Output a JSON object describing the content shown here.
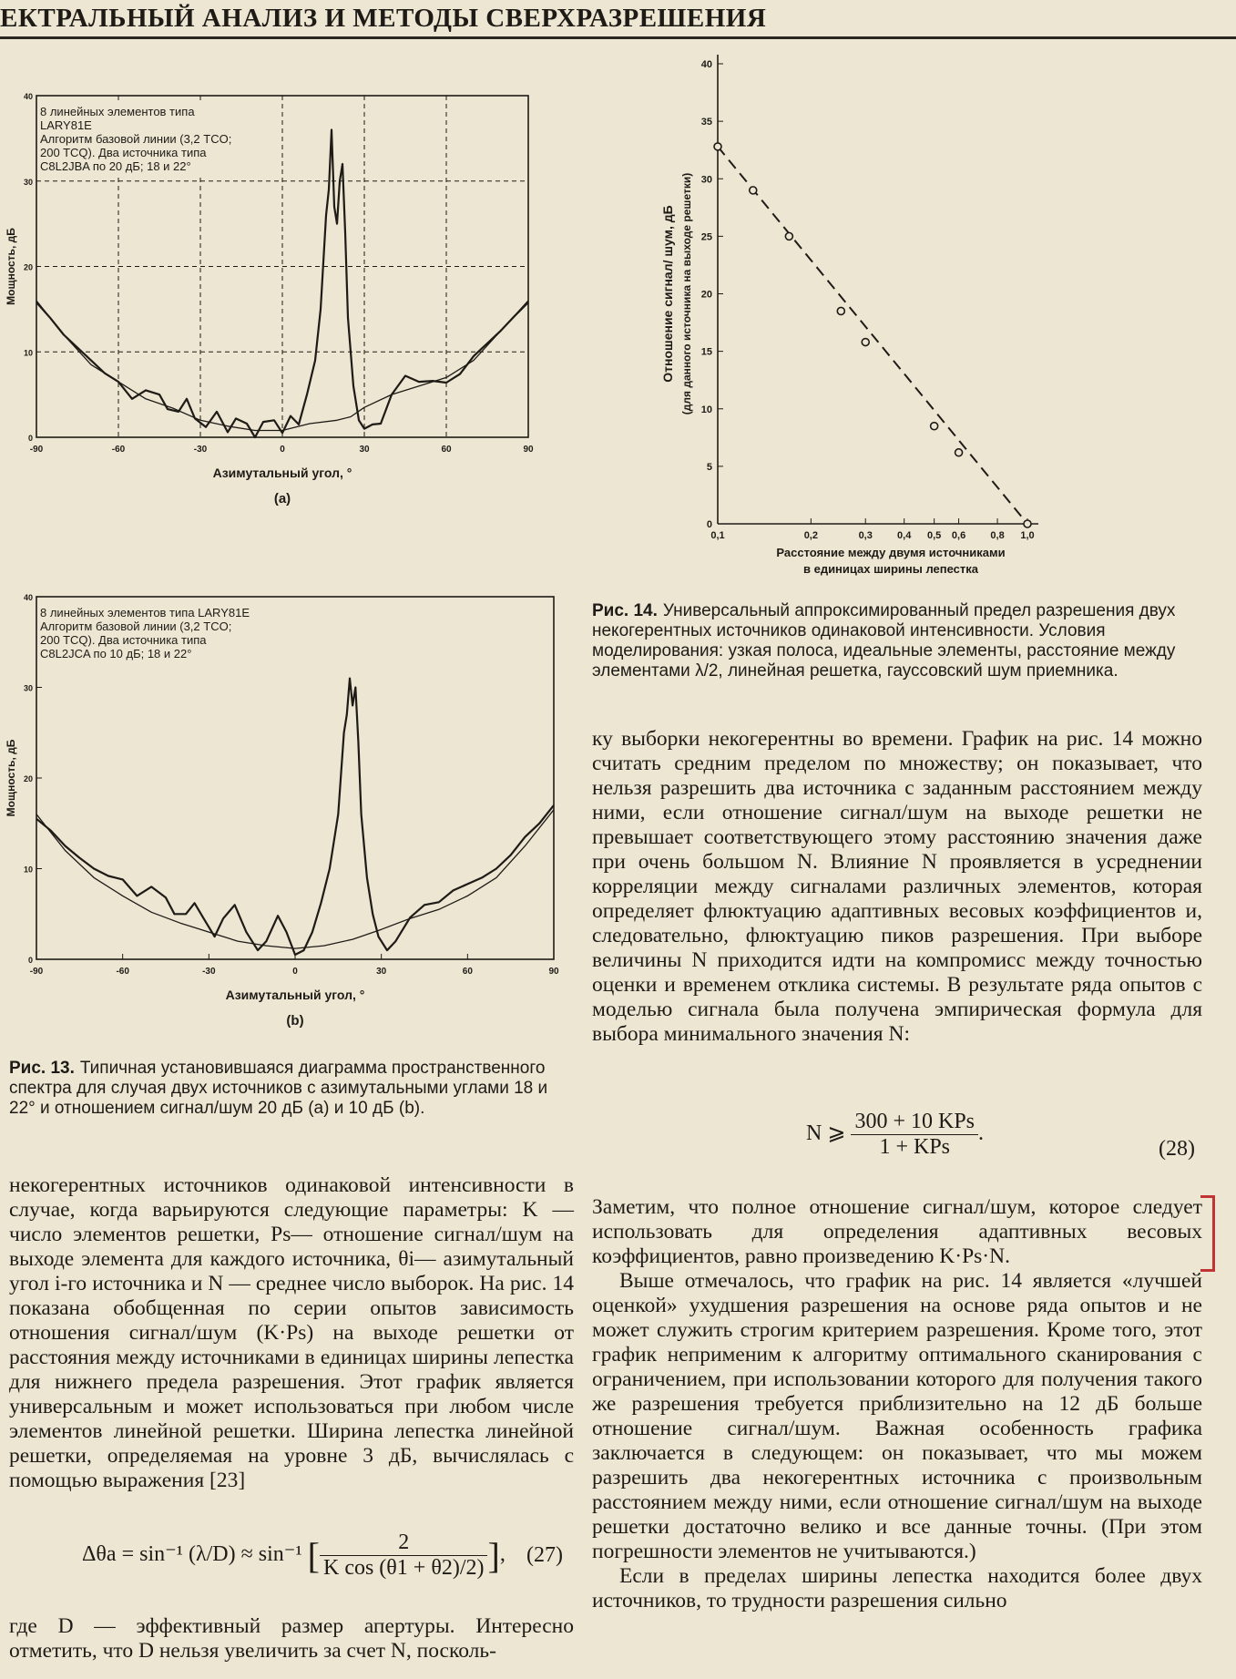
{
  "header": {
    "title": "ЕКТРАЛЬНЫЙ АНАЛИЗ И МЕТОДЫ СВЕРХРАЗРЕШЕНИЯ"
  },
  "chart_data": [
    {
      "id": "a",
      "type": "line",
      "panel_label": "(a)",
      "xlabel": "Азимутальный угол, °",
      "ylabel": "Мощность, дБ",
      "xlim": [
        -90,
        90
      ],
      "ylim": [
        0,
        40
      ],
      "xticks": [
        "-90",
        "-60",
        "-30",
        "0",
        "30",
        "60",
        "90"
      ],
      "yticks": [
        "0",
        "10",
        "20",
        "30",
        "40"
      ],
      "grid": true,
      "annotation": [
        "8 линейных элементов типа",
        "LARY81E",
        "Алгоритм базовой линии (3,2 TCO;",
        "200 TCQ). Два источника типа",
        "C8L2JBA по 20 дБ; 18 и 22°"
      ],
      "series": [
        {
          "values": [
            [
              -90,
              16
            ],
            [
              -80,
              12
            ],
            [
              -70,
              8.5
            ],
            [
              -60,
              6.5
            ],
            [
              -50,
              4.5
            ],
            [
              -40,
              3.4
            ],
            [
              -30,
              2
            ],
            [
              -20,
              1.3
            ],
            [
              -10,
              0.8
            ],
            [
              0,
              0.8
            ],
            [
              10,
              1.6
            ],
            [
              20,
              2
            ],
            [
              25,
              2.4
            ],
            [
              30,
              3.5
            ],
            [
              40,
              5
            ],
            [
              50,
              6
            ],
            [
              60,
              7
            ],
            [
              70,
              9
            ],
            [
              80,
              12.5
            ],
            [
              90,
              16
            ]
          ]
        },
        {
          "values": [
            [
              -90,
              15.8
            ],
            [
              -85,
              14
            ],
            [
              -80,
              12
            ],
            [
              -75,
              10.5
            ],
            [
              -70,
              9
            ],
            [
              -65,
              7.5
            ],
            [
              -60,
              6.5
            ],
            [
              -55,
              4.5
            ],
            [
              -50,
              5.5
            ],
            [
              -45,
              5
            ],
            [
              -42,
              3.3
            ],
            [
              -38,
              3
            ],
            [
              -35,
              4.5
            ],
            [
              -32,
              2.2
            ],
            [
              -28,
              1.2
            ],
            [
              -24,
              3
            ],
            [
              -20,
              0.6
            ],
            [
              -17,
              2.2
            ],
            [
              -13,
              1.6
            ],
            [
              -10,
              0
            ],
            [
              -7,
              1.8
            ],
            [
              -3,
              2
            ],
            [
              0,
              0.5
            ],
            [
              3,
              2.5
            ],
            [
              6,
              1.5
            ],
            [
              9,
              5
            ],
            [
              12,
              9
            ],
            [
              14,
              15
            ],
            [
              16,
              26
            ],
            [
              17,
              29
            ],
            [
              18,
              36
            ],
            [
              19,
              27
            ],
            [
              20,
              25
            ],
            [
              21,
              30
            ],
            [
              22,
              32
            ],
            [
              23,
              24
            ],
            [
              24,
              14
            ],
            [
              26,
              6
            ],
            [
              28,
              2
            ],
            [
              30,
              1
            ],
            [
              33,
              1.5
            ],
            [
              36,
              1.6
            ],
            [
              40,
              5
            ],
            [
              45,
              7.2
            ],
            [
              50,
              6.5
            ],
            [
              55,
              6.6
            ],
            [
              60,
              6.4
            ],
            [
              65,
              7.4
            ],
            [
              70,
              9.5
            ],
            [
              75,
              11
            ],
            [
              80,
              12.5
            ],
            [
              85,
              14.2
            ],
            [
              90,
              15.8
            ]
          ]
        }
      ]
    },
    {
      "x_title": "Расстояние между двумя источниками",
      "xlabel": "в единицах ширины лепестка",
      "ylabel": "Отношение сигнал/ шум, дБ",
      "ylabel2": "(для данного источника на выходе решетки)",
      "id": "14",
      "type": "scatter",
      "xscale": "log",
      "xlim": [
        0.1,
        1.0
      ],
      "ylim": [
        0,
        40
      ],
      "xticks": [
        "0,1",
        "0,2",
        "0,3",
        "0,4",
        "0,5",
        "0,6",
        "0,8",
        "1,0"
      ],
      "yticks": [
        "0",
        "5",
        "10",
        "15",
        "20",
        "25",
        "30",
        "35",
        "40"
      ],
      "points": [
        [
          0.1,
          32.8
        ],
        [
          0.13,
          29
        ],
        [
          0.17,
          25
        ],
        [
          0.25,
          18.5
        ],
        [
          0.3,
          15.8
        ],
        [
          0.5,
          8.5
        ],
        [
          0.6,
          6.2
        ],
        [
          1.0,
          0
        ]
      ],
      "fit_line": [
        [
          0.1,
          32.8
        ],
        [
          1.0,
          0
        ]
      ]
    },
    {
      "id": "b",
      "type": "line",
      "panel_label": "(b)",
      "xlabel": "Азимутальный угол, °",
      "ylabel": "Мощность, дБ",
      "xlim": [
        -90,
        90
      ],
      "ylim": [
        0,
        40
      ],
      "xticks": [
        "-90",
        "-60",
        "-30",
        "0",
        "30",
        "60",
        "90"
      ],
      "yticks": [
        "0",
        "10",
        "20",
        "30",
        "40"
      ],
      "grid": false,
      "annotation": [
        "8 линейных элементов типа LARY81E",
        "Алгоритм базовой линии (3,2 TCO;",
        "200 TCQ). Два источника типа",
        "C8L2JCA по 10 дБ; 18 и 22°"
      ],
      "series": [
        {
          "values": [
            [
              -90,
              16
            ],
            [
              -80,
              12
            ],
            [
              -70,
              9
            ],
            [
              -60,
              7
            ],
            [
              -50,
              5.2
            ],
            [
              -40,
              4
            ],
            [
              -30,
              3
            ],
            [
              -20,
              2
            ],
            [
              -10,
              1.5
            ],
            [
              0,
              1.2
            ],
            [
              10,
              1.5
            ],
            [
              20,
              2.2
            ],
            [
              30,
              3.3
            ],
            [
              40,
              4.5
            ],
            [
              50,
              5.5
            ],
            [
              60,
              7
            ],
            [
              70,
              9
            ],
            [
              80,
              12.5
            ],
            [
              90,
              16.5
            ]
          ]
        },
        {
          "values": [
            [
              -90,
              15.5
            ],
            [
              -85,
              14.2
            ],
            [
              -80,
              12.5
            ],
            [
              -75,
              11.2
            ],
            [
              -70,
              10
            ],
            [
              -65,
              9.2
            ],
            [
              -60,
              8.8
            ],
            [
              -55,
              7
            ],
            [
              -50,
              8
            ],
            [
              -45,
              6.8
            ],
            [
              -42,
              5
            ],
            [
              -38,
              5
            ],
            [
              -35,
              6.2
            ],
            [
              -32,
              4.6
            ],
            [
              -28,
              2.5
            ],
            [
              -25,
              4.5
            ],
            [
              -21,
              6
            ],
            [
              -17,
              3
            ],
            [
              -13,
              1
            ],
            [
              -10,
              2
            ],
            [
              -6,
              4.8
            ],
            [
              -3,
              3
            ],
            [
              0,
              0.5
            ],
            [
              3,
              1
            ],
            [
              6,
              3
            ],
            [
              9,
              6.2
            ],
            [
              12,
              10
            ],
            [
              15,
              16
            ],
            [
              17,
              25
            ],
            [
              18,
              27
            ],
            [
              19,
              31
            ],
            [
              20,
              28
            ],
            [
              21,
              30
            ],
            [
              22,
              24
            ],
            [
              23,
              16
            ],
            [
              25,
              9
            ],
            [
              27,
              5
            ],
            [
              29,
              2.5
            ],
            [
              32,
              1
            ],
            [
              35,
              2
            ],
            [
              40,
              4.6
            ],
            [
              45,
              6
            ],
            [
              50,
              6.3
            ],
            [
              55,
              7.6
            ],
            [
              60,
              8.3
            ],
            [
              65,
              9
            ],
            [
              70,
              10
            ],
            [
              75,
              11.5
            ],
            [
              80,
              13.5
            ],
            [
              85,
              15
            ],
            [
              90,
              17
            ]
          ]
        }
      ]
    }
  ],
  "caption13": {
    "label": "Рис. 13.",
    "text": "Типичная установившаяся диаграмма пространственного спектра для случая двух источников с азимутальными углами 18 и 22° и отношением сигнал/шум 20 дБ (a) и 10 дБ (b)."
  },
  "caption14": {
    "label": "Рис. 14.",
    "text": "Универсальный аппроксимированный предел разрешения двух некогерентных источников одинаковой интенсивности. Условия моделирования: узкая полоса, идеальные элементы, расстояние между элементами λ/2, линейная решетка, гауссовский шум приемника."
  },
  "text_left": "некогерентных источников одинаковой интенсивности в случае, когда варьируются следующие параметры: K — число элементов решетки, Ps— отношение сигнал/шум на выходе элемента для каждого источника, θi— азимутальный угол i-го источника и N — среднее число выборок. На рис. 14 показана обобщенная по серии опытов зависимость отношения сигнал/шум (K·Ps) на выходе решетки от расстояния между источниками в единицах ширины лепестка для нижнего предела разрешения. Этот график является универсальным и может использоваться при любом числе элементов линейной решетки. Ширина лепестка линейной решетки, определяемая на уровне 3 дБ, вычислялась с помощью выражения [23]",
  "eq27": {
    "lhs": "Δθa = sin⁻¹ (λ/D) ≈ sin⁻¹",
    "num": "2",
    "den": "K cos (θ1 + θ2)/2)",
    "number": "(27)"
  },
  "text_left_end": "где D — эффективный размер апертуры. Интересно отметить, что D нельзя увеличить за счет N, посколь-",
  "text_right_1": "ку выборки некогерентны во времени. График на рис. 14 можно считать средним пределом по множеству; он показывает, что нельзя разрешить два источника с заданным расстоянием между ними, если отношение сигнал/шум на выходе решетки не превышает соответствующего этому расстоянию значения даже при очень большом N. Влияние N проявляется в усреднении корреляции между сигналами различных элементов, которая определяет флюктуацию адаптивных весовых коэффициентов и, следовательно, флюктуацию пиков разрешения. При выборе величины N приходится идти на компромисс между точностью оценки и временем отклика системы. В результате ряда опытов с моделью сигнала была получена эмпирическая формула для выбора минимального значения N:",
  "eq28": {
    "lhs": "N ⩾",
    "num": "300 + 10 KPs",
    "den": "1 + KPs",
    "tail": ".",
    "number": "(28)"
  },
  "text_right_2": "Заметим, что полное отношение сигнал/шум, которое следует использовать для определения адаптивных весовых коэффициентов, равно произведению K·Ps·N.",
  "text_right_3": "Выше отмечалось, что график на рис. 14 является «лучшей оценкой» ухудшения разрешения на основе ряда опытов и не может служить строгим критерием разрешения. Кроме того, этот график неприменим к алгоритму оптимального сканирования с ограничением, при использовании которого для получения такого же разрешения требуется приблизительно на 12 дБ больше отношение сигнал/шум. Важная особенность графика заключается в следующем: он показывает, что мы можем разрешить два некогерентных источника с произвольным расстоянием между ними, если отношение сигнал/шум на выходе решетки достаточно велико и все данные точны. (При этом погрешности элементов не учитываются.)",
  "text_right_4": "Если в пределах ширины лепестка находится более двух источников, то трудности разрешения сильно"
}
